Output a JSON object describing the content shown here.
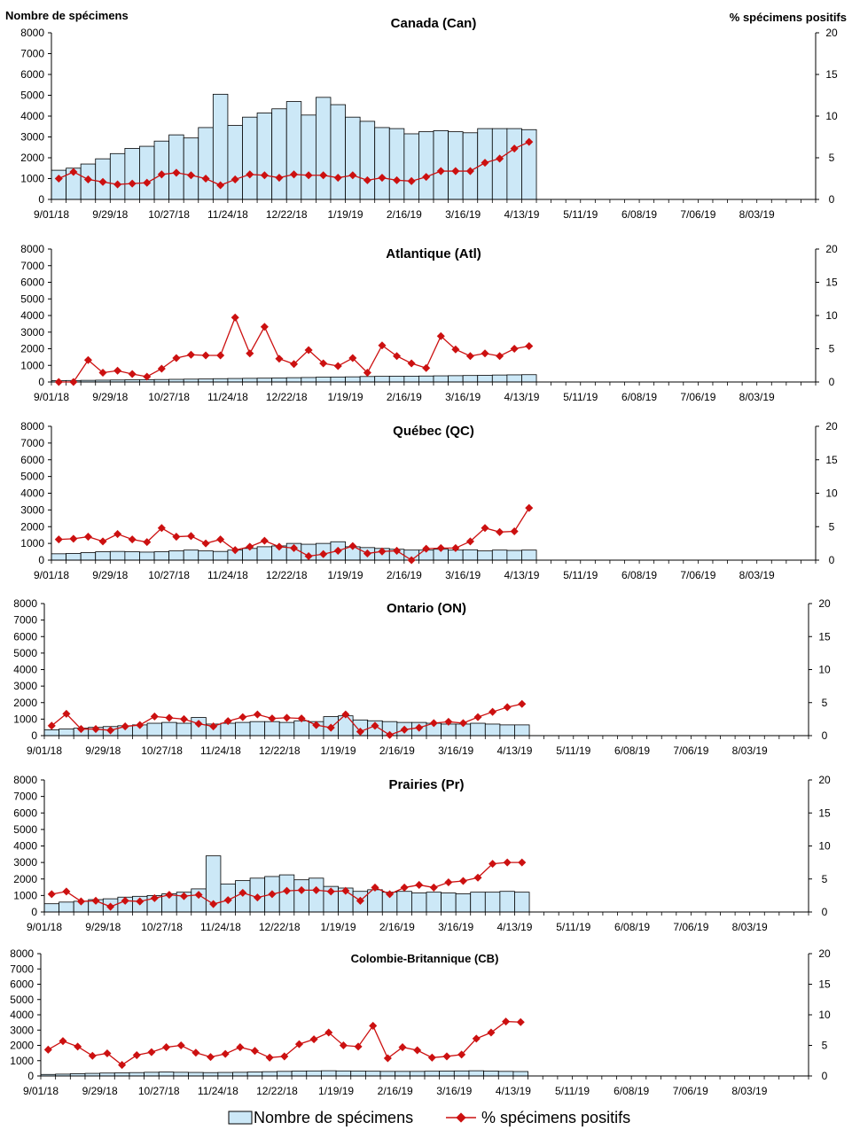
{
  "header": {
    "left_axis_title": "Nombre de spécimens",
    "right_axis_title": "% spécimens positifs"
  },
  "legend": {
    "bars_label": "Nombre de spécimens",
    "line_label": "% spécimens positifs"
  },
  "colors": {
    "bar_fill": "#cce8f7",
    "bar_stroke": "#000000",
    "line": "#cc1010"
  },
  "chart_data": [
    {
      "type": "bar",
      "title": "Canada (Can)",
      "y_left_lim": [
        0,
        8000
      ],
      "y_left_ticks": [
        "0",
        "1000",
        "2000",
        "3000",
        "4000",
        "5000",
        "6000",
        "7000",
        "8000"
      ],
      "y_right_lim": [
        0,
        20
      ],
      "y_right_ticks": [
        "0",
        "5",
        "10",
        "15",
        "20"
      ],
      "x_tick_labels": [
        "9/01/18",
        "9/29/18",
        "10/27/18",
        "11/24/18",
        "12/22/18",
        "1/19/19",
        "2/16/19",
        "3/16/19",
        "4/13/19",
        "5/11/19",
        "6/08/19",
        "7/06/19",
        "8/03/19"
      ],
      "weeks_total": 52,
      "series": [
        {
          "name": "Nombre de spécimens",
          "kind": "bar",
          "values": [
            1400,
            1500,
            1700,
            1950,
            2200,
            2450,
            2550,
            2800,
            3100,
            2950,
            3450,
            5050,
            3550,
            3950,
            4150,
            4350,
            4700,
            4050,
            4900,
            4550,
            3950,
            3750,
            3450,
            3400,
            3150,
            3250,
            3300,
            3250,
            3200,
            3400,
            3400,
            3400,
            3350
          ]
        },
        {
          "name": "% spécimens positifs",
          "kind": "line",
          "values": [
            2.5,
            3.3,
            2.4,
            2.1,
            1.8,
            1.9,
            2.0,
            3.0,
            3.2,
            2.9,
            2.5,
            1.7,
            2.4,
            3.0,
            2.9,
            2.6,
            3.0,
            2.9,
            2.9,
            2.6,
            2.9,
            2.3,
            2.6,
            2.3,
            2.2,
            2.7,
            3.4,
            3.4,
            3.4,
            4.4,
            4.9,
            6.1,
            6.9
          ]
        }
      ]
    },
    {
      "type": "bar",
      "title": "Atlantique (Atl)",
      "y_left_lim": [
        0,
        8000
      ],
      "y_left_ticks": [
        "0",
        "1000",
        "2000",
        "3000",
        "4000",
        "5000",
        "6000",
        "7000",
        "8000"
      ],
      "y_right_lim": [
        0,
        20
      ],
      "y_right_ticks": [
        "0",
        "5",
        "10",
        "15",
        "20"
      ],
      "x_tick_labels": [
        "9/01/18",
        "9/29/18",
        "10/27/18",
        "11/24/18",
        "12/22/18",
        "1/19/19",
        "2/16/19",
        "3/16/19",
        "4/13/19",
        "5/11/19",
        "6/08/19",
        "7/06/19",
        "8/03/19"
      ],
      "weeks_total": 52,
      "series": [
        {
          "name": "Nombre de spécimens",
          "kind": "bar",
          "values": [
            80,
            90,
            100,
            110,
            120,
            130,
            140,
            150,
            160,
            170,
            180,
            200,
            210,
            220,
            230,
            240,
            260,
            270,
            290,
            300,
            310,
            330,
            340,
            350,
            350,
            360,
            370,
            380,
            390,
            400,
            420,
            430,
            440
          ]
        },
        {
          "name": "% spécimens positifs",
          "kind": "line",
          "values": [
            0,
            0,
            3.3,
            1.4,
            1.7,
            1.2,
            0.8,
            2.0,
            3.6,
            4.1,
            4.0,
            4.0,
            9.7,
            4.3,
            8.3,
            3.5,
            2.7,
            4.8,
            2.8,
            2.4,
            3.6,
            1.4,
            5.5,
            3.9,
            2.8,
            2.1,
            6.9,
            4.9,
            3.9,
            4.3,
            3.9,
            5.0,
            5.4
          ]
        }
      ]
    },
    {
      "type": "bar",
      "title": "Québec (QC)",
      "y_left_lim": [
        0,
        8000
      ],
      "y_left_ticks": [
        "0",
        "1000",
        "2000",
        "3000",
        "4000",
        "5000",
        "6000",
        "7000",
        "8000"
      ],
      "y_right_lim": [
        0,
        20
      ],
      "y_right_ticks": [
        "0",
        "5",
        "10",
        "15",
        "20"
      ],
      "x_tick_labels": [
        "9/01/18",
        "9/29/18",
        "10/27/18",
        "11/24/18",
        "12/22/18",
        "1/19/19",
        "2/16/19",
        "3/16/19",
        "4/13/19",
        "5/11/19",
        "6/08/19",
        "7/06/19",
        "8/03/19"
      ],
      "weeks_total": 52,
      "series": [
        {
          "name": "Nombre de spécimens",
          "kind": "bar",
          "values": [
            380,
            400,
            450,
            500,
            520,
            500,
            480,
            500,
            550,
            600,
            550,
            520,
            600,
            700,
            800,
            850,
            1000,
            950,
            1000,
            1100,
            800,
            750,
            700,
            650,
            600,
            600,
            650,
            600,
            620,
            550,
            600,
            580,
            600
          ]
        },
        {
          "name": "% spécimens positifs",
          "kind": "line",
          "values": [
            3.1,
            3.2,
            3.5,
            2.8,
            3.9,
            3.1,
            2.7,
            4.8,
            3.5,
            3.6,
            2.5,
            3.1,
            1.5,
            2.0,
            2.9,
            2.0,
            1.8,
            0.6,
            0.9,
            1.4,
            2.1,
            1.0,
            1.3,
            1.4,
            0,
            1.7,
            1.8,
            1.8,
            2.8,
            4.8,
            4.2,
            4.3,
            7.8
          ]
        }
      ]
    },
    {
      "type": "bar",
      "title": "Ontario (ON)",
      "y_left_lim": [
        0,
        8000
      ],
      "y_left_ticks": [
        "0",
        "1000",
        "2000",
        "3000",
        "4000",
        "5000",
        "6000",
        "7000",
        "8000"
      ],
      "y_right_lim": [
        0,
        20
      ],
      "y_right_ticks": [
        "0",
        "5",
        "10",
        "15",
        "20"
      ],
      "x_tick_labels": [
        "9/01/18",
        "9/29/18",
        "10/27/18",
        "11/24/18",
        "12/22/18",
        "1/19/19",
        "2/16/19",
        "3/16/19",
        "4/13/19",
        "5/11/19",
        "6/08/19",
        "7/06/19",
        "8/03/19"
      ],
      "weeks_total": 52,
      "series": [
        {
          "name": "Nombre de spécimens",
          "kind": "bar",
          "values": [
            350,
            400,
            450,
            500,
            550,
            600,
            650,
            750,
            800,
            750,
            1100,
            700,
            750,
            800,
            850,
            850,
            800,
            900,
            850,
            1150,
            1200,
            950,
            900,
            850,
            800,
            800,
            750,
            700,
            700,
            750,
            700,
            650,
            650
          ]
        },
        {
          "name": "% spécimens positifs",
          "kind": "line",
          "values": [
            1.5,
            3.3,
            1.0,
            1.0,
            0.8,
            1.4,
            1.6,
            2.9,
            2.7,
            2.5,
            1.8,
            1.4,
            2.2,
            2.8,
            3.2,
            2.6,
            2.7,
            2.6,
            1.6,
            1.2,
            3.2,
            0.6,
            1.5,
            0.1,
            0.9,
            1.2,
            1.9,
            2.1,
            1.9,
            2.8,
            3.6,
            4.3,
            4.8
          ]
        }
      ]
    },
    {
      "type": "bar",
      "title": "Prairies (Pr)",
      "y_left_lim": [
        0,
        8000
      ],
      "y_left_ticks": [
        "0",
        "1000",
        "2000",
        "3000",
        "4000",
        "5000",
        "6000",
        "7000",
        "8000"
      ],
      "y_right_lim": [
        0,
        20
      ],
      "y_right_ticks": [
        "0",
        "5",
        "10",
        "15",
        "20"
      ],
      "x_tick_labels": [
        "9/01/18",
        "9/29/18",
        "10/27/18",
        "11/24/18",
        "12/22/18",
        "1/19/19",
        "2/16/19",
        "3/16/19",
        "4/13/19",
        "5/11/19",
        "6/08/19",
        "7/06/19",
        "8/03/19"
      ],
      "weeks_total": 52,
      "series": [
        {
          "name": "Nombre de spécimens",
          "kind": "bar",
          "values": [
            500,
            600,
            650,
            750,
            800,
            900,
            950,
            1000,
            1100,
            1200,
            1400,
            3400,
            1700,
            1900,
            2050,
            2150,
            2250,
            1950,
            2050,
            1550,
            1450,
            1250,
            1350,
            1200,
            1250,
            1150,
            1200,
            1150,
            1100,
            1200,
            1200,
            1250,
            1200
          ]
        },
        {
          "name": "% spécimens positifs",
          "kind": "line",
          "values": [
            2.7,
            3.1,
            1.6,
            1.7,
            0.8,
            1.7,
            1.6,
            2.1,
            2.6,
            2.4,
            2.6,
            1.2,
            1.8,
            2.9,
            2.2,
            2.7,
            3.2,
            3.3,
            3.3,
            3.1,
            3.2,
            1.7,
            3.7,
            2.7,
            3.7,
            4.1,
            3.7,
            4.5,
            4.7,
            5.2,
            7.3,
            7.5,
            7.5
          ]
        }
      ]
    },
    {
      "type": "bar",
      "title": "Colombie-Britannique (CB)",
      "y_left_lim": [
        0,
        8000
      ],
      "y_left_ticks": [
        "0",
        "1000",
        "2000",
        "3000",
        "4000",
        "5000",
        "6000",
        "7000",
        "8000"
      ],
      "y_right_lim": [
        0,
        20
      ],
      "y_right_ticks": [
        "0",
        "5",
        "10",
        "15",
        "20"
      ],
      "x_tick_labels": [
        "9/01/18",
        "9/29/18",
        "10/27/18",
        "11/24/18",
        "12/22/18",
        "1/19/19",
        "2/16/19",
        "3/16/19",
        "4/13/19",
        "5/11/19",
        "6/08/19",
        "7/06/19",
        "8/03/19"
      ],
      "weeks_total": 52,
      "series": [
        {
          "name": "Nombre de spécimens",
          "kind": "bar",
          "values": [
            100,
            120,
            150,
            170,
            190,
            200,
            220,
            240,
            260,
            240,
            230,
            220,
            230,
            240,
            260,
            280,
            300,
            320,
            330,
            340,
            330,
            320,
            310,
            300,
            300,
            300,
            310,
            320,
            330,
            340,
            320,
            300,
            290
          ]
        },
        {
          "name": "% spécimens positifs",
          "kind": "line",
          "values": [
            4.3,
            5.7,
            4.8,
            3.3,
            3.7,
            1.8,
            3.4,
            3.9,
            4.7,
            5.0,
            3.8,
            3.1,
            3.6,
            4.7,
            4.1,
            3.0,
            3.2,
            5.2,
            6.0,
            7.1,
            5.0,
            4.8,
            8.2,
            2.9,
            4.7,
            4.2,
            3.0,
            3.2,
            3.5,
            6.1,
            7.1,
            8.9,
            8.8
          ]
        }
      ]
    }
  ]
}
